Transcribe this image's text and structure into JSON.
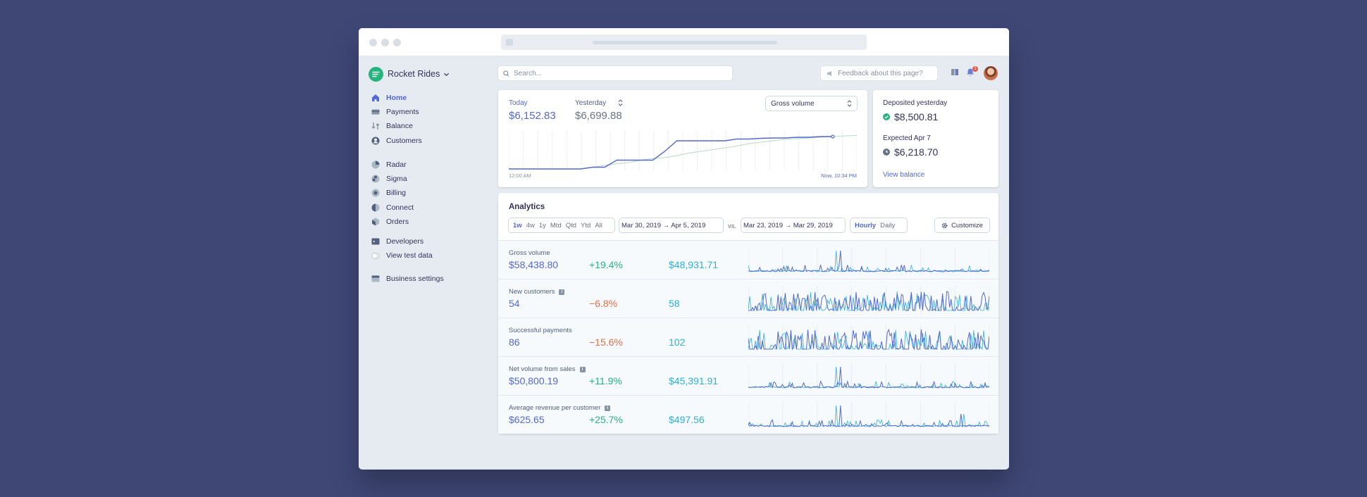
{
  "brand": {
    "name": "Rocket Rides",
    "color": "#24b47e"
  },
  "nav": {
    "groups": [
      [
        {
          "id": "home",
          "label": "Home",
          "icon": "home-icon",
          "active": true
        },
        {
          "id": "payments",
          "label": "Payments",
          "icon": "payments-icon"
        },
        {
          "id": "balance",
          "label": "Balance",
          "icon": "balance-icon"
        },
        {
          "id": "customers",
          "label": "Customers",
          "icon": "customers-icon"
        }
      ],
      [
        {
          "id": "radar",
          "label": "Radar",
          "icon": "radar-icon"
        },
        {
          "id": "sigma",
          "label": "Sigma",
          "icon": "sigma-icon"
        },
        {
          "id": "billing",
          "label": "Billing",
          "icon": "billing-icon"
        },
        {
          "id": "connect",
          "label": "Connect",
          "icon": "connect-icon"
        },
        {
          "id": "orders",
          "label": "Orders",
          "icon": "orders-icon"
        }
      ],
      [
        {
          "id": "developers",
          "label": "Developers",
          "icon": "developers-icon"
        },
        {
          "id": "test-data",
          "label": "View test data",
          "icon": "toggle"
        }
      ],
      [
        {
          "id": "business-settings",
          "label": "Business settings",
          "icon": "settings-icon"
        }
      ]
    ]
  },
  "topbar": {
    "search_placeholder": "Search...",
    "feedback_label": "Feedback about this page?",
    "notification_count": "1"
  },
  "summary": {
    "today_label": "Today",
    "today_value": "$6,152.83",
    "yesterday_label": "Yesterday",
    "yesterday_value": "$6,699.88",
    "metric_select": "Gross volume",
    "axis_start": "12:00 AM",
    "axis_end": "Now, 10:34 PM"
  },
  "balance": {
    "deposited_label": "Deposited yesterday",
    "deposited_value": "$8,500.81",
    "expected_label": "Expected Apr 7",
    "expected_value": "$6,218.70",
    "view_link": "View balance"
  },
  "analytics": {
    "title": "Analytics",
    "ranges": [
      "1w",
      "4w",
      "1y",
      "Mtd",
      "Qtd",
      "Ytd",
      "All"
    ],
    "active_range": "1w",
    "current_period": "Mar 30, 2019 → Apr 5, 2019",
    "vs_label": "vs.",
    "compare_period": "Mar 23, 2019 → Mar 29, 2019",
    "granularity": [
      "Hourly",
      "Daily"
    ],
    "active_granularity": "Hourly",
    "customize_label": "Customize",
    "rows": [
      {
        "name": "Gross volume",
        "info": false,
        "value": "$58,438.80",
        "change": "+19.4%",
        "trend": "pos",
        "previous": "$48,931.71"
      },
      {
        "name": "New customers",
        "info": true,
        "value": "54",
        "change": "−6.8%",
        "trend": "neg",
        "previous": "58"
      },
      {
        "name": "Successful payments",
        "info": false,
        "value": "86",
        "change": "−15.6%",
        "trend": "neg",
        "previous": "102"
      },
      {
        "name": "Net volume from sales",
        "info": true,
        "value": "$50,800.19",
        "change": "+11.9%",
        "trend": "pos",
        "previous": "$45,391.91"
      },
      {
        "name": "Average revenue per customer",
        "info": true,
        "value": "$625.65",
        "change": "+25.7%",
        "trend": "pos",
        "previous": "$497.56"
      }
    ]
  },
  "colors": {
    "accent": "#5469d4",
    "positive": "#24b47e",
    "negative": "#e56f4a",
    "previous": "#2eb0d6",
    "today_line": "#5469d4",
    "yesterday_line": "#b7dcc0"
  },
  "chart_data": {
    "type": "line",
    "title": "",
    "xlabel": "",
    "ylabel": "",
    "x_range": [
      "12:00 AM",
      "Now, 10:34 PM"
    ],
    "grid": true,
    "series": [
      {
        "name": "Today",
        "values": [
          0.0,
          0.0,
          0.0,
          0.0,
          0.0,
          0.0,
          0.0,
          0.05,
          0.05,
          0.25,
          0.25,
          0.25,
          0.25,
          0.5,
          0.8,
          0.8,
          0.8,
          0.8,
          0.8,
          0.85,
          0.85,
          0.87,
          0.88,
          0.88,
          0.9,
          0.9,
          0.92,
          0.92
        ]
      },
      {
        "name": "Yesterday",
        "values": [
          0.0,
          0.0,
          0.0,
          0.0,
          0.0,
          0.0,
          0.0,
          0.05,
          0.1,
          0.15,
          0.18,
          0.25,
          0.3,
          0.32,
          0.38,
          0.45,
          0.5,
          0.55,
          0.6,
          0.65,
          0.72,
          0.76,
          0.8,
          0.84,
          0.86,
          0.88,
          0.9,
          0.92,
          0.94,
          0.95
        ]
      }
    ]
  }
}
